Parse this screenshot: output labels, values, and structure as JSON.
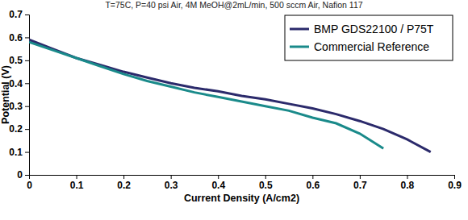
{
  "chart_data": {
    "type": "line",
    "title": "T=75C, P=40 psi Air, 4M MeOH@2mL/min, 500 sccm Air, Nafion 117",
    "x_label": "Current Density (A/cm2)",
    "y_label": "Potential (V)",
    "x": [
      0,
      0.05,
      0.1,
      0.15,
      0.2,
      0.25,
      0.3,
      0.35,
      0.4,
      0.45,
      0.5,
      0.55,
      0.6,
      0.65,
      0.7,
      0.75,
      0.8,
      0.85
    ],
    "series": [
      {
        "name": "BMP GDS22100 / P75T",
        "color": "#2b2a6b",
        "values": [
          0.59,
          0.55,
          0.51,
          0.48,
          0.45,
          0.425,
          0.4,
          0.38,
          0.365,
          0.345,
          0.33,
          0.31,
          0.29,
          0.265,
          0.235,
          0.2,
          0.155,
          0.1
        ]
      },
      {
        "name": "Commercial Reference",
        "color": "#1a8a8a",
        "values": [
          0.58,
          0.545,
          0.51,
          0.475,
          0.44,
          0.41,
          0.385,
          0.36,
          0.34,
          0.32,
          0.3,
          0.28,
          0.25,
          0.225,
          0.18,
          0.115,
          null,
          null
        ]
      }
    ],
    "xlim": [
      0,
      0.9
    ],
    "xticks": [
      0,
      0.1,
      0.2,
      0.3,
      0.4,
      0.5,
      0.6,
      0.7,
      0.8,
      0.9
    ],
    "ylim": [
      0,
      0.7
    ],
    "yticks": [
      0,
      0.1,
      0.2,
      0.3,
      0.4,
      0.5,
      0.6,
      0.7
    ],
    "grid": false,
    "legend": "upper right"
  }
}
